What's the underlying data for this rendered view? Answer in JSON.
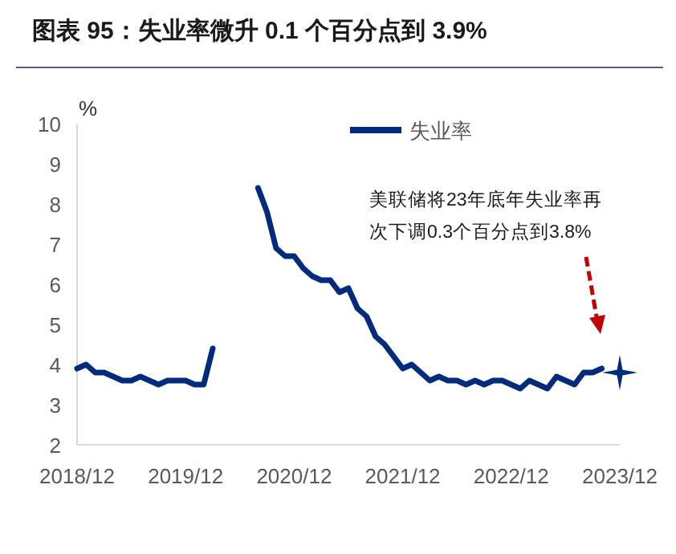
{
  "chart_data": {
    "type": "line",
    "title": "图表 95：失业率微升 0.1 个百分点到 3.9%",
    "ylabel": "%",
    "series": [
      {
        "name": "失业率",
        "color": "#002a7a",
        "x": [
          "2018-12",
          "2019-01",
          "2019-02",
          "2019-03",
          "2019-04",
          "2019-05",
          "2019-06",
          "2019-07",
          "2019-08",
          "2019-09",
          "2019-10",
          "2019-11",
          "2019-12",
          "2020-01",
          "2020-02",
          "2020-03",
          "2020-04",
          "2020-05",
          "2020-06",
          "2020-07",
          "2020-08",
          "2020-09",
          "2020-10",
          "2020-11",
          "2020-12",
          "2021-01",
          "2021-02",
          "2021-03",
          "2021-04",
          "2021-05",
          "2021-06",
          "2021-07",
          "2021-08",
          "2021-09",
          "2021-10",
          "2021-11",
          "2021-12",
          "2022-01",
          "2022-02",
          "2022-03",
          "2022-04",
          "2022-05",
          "2022-06",
          "2022-07",
          "2022-08",
          "2022-09",
          "2022-10",
          "2022-11",
          "2022-12",
          "2023-01",
          "2023-02",
          "2023-03",
          "2023-04",
          "2023-05",
          "2023-06",
          "2023-07",
          "2023-08",
          "2023-09",
          "2023-10"
        ],
        "values": [
          3.9,
          4.0,
          3.8,
          3.8,
          3.7,
          3.6,
          3.6,
          3.7,
          3.6,
          3.5,
          3.6,
          3.6,
          3.6,
          3.5,
          3.5,
          4.4,
          null,
          null,
          null,
          null,
          8.4,
          7.8,
          6.9,
          6.7,
          6.7,
          6.4,
          6.2,
          6.1,
          6.1,
          5.8,
          5.9,
          5.4,
          5.2,
          4.7,
          4.5,
          4.2,
          3.9,
          4.0,
          3.8,
          3.6,
          3.7,
          3.6,
          3.6,
          3.5,
          3.6,
          3.5,
          3.6,
          3.6,
          3.5,
          3.4,
          3.6,
          3.5,
          3.4,
          3.7,
          3.6,
          3.5,
          3.8,
          3.8,
          3.9
        ]
      },
      {
        "color": "#002a7a",
        "type": "scatter",
        "marker": "star",
        "x": [
          "2023-12"
        ],
        "values": [
          3.8
        ]
      }
    ],
    "xlim": [
      "2018-12",
      "2023-12"
    ],
    "xticks": [
      {
        "value": "2018-12",
        "label": "2018/12"
      },
      {
        "value": "2019-12",
        "label": "2019/12"
      },
      {
        "value": "2020-12",
        "label": "2020/12"
      },
      {
        "value": "2021-12",
        "label": "2021/12"
      },
      {
        "value": "2022-12",
        "label": "2022/12"
      },
      {
        "value": "2023-12",
        "label": "2023/12"
      }
    ],
    "ylim": [
      2,
      10
    ],
    "yticks": [
      2,
      3,
      4,
      5,
      6,
      7,
      8,
      9,
      10
    ],
    "annotations": [
      "美联储将23年底年失业率再次下调0.3个百分点到3.8%"
    ],
    "legend": "top",
    "line_style": "solid",
    "grid": false
  }
}
